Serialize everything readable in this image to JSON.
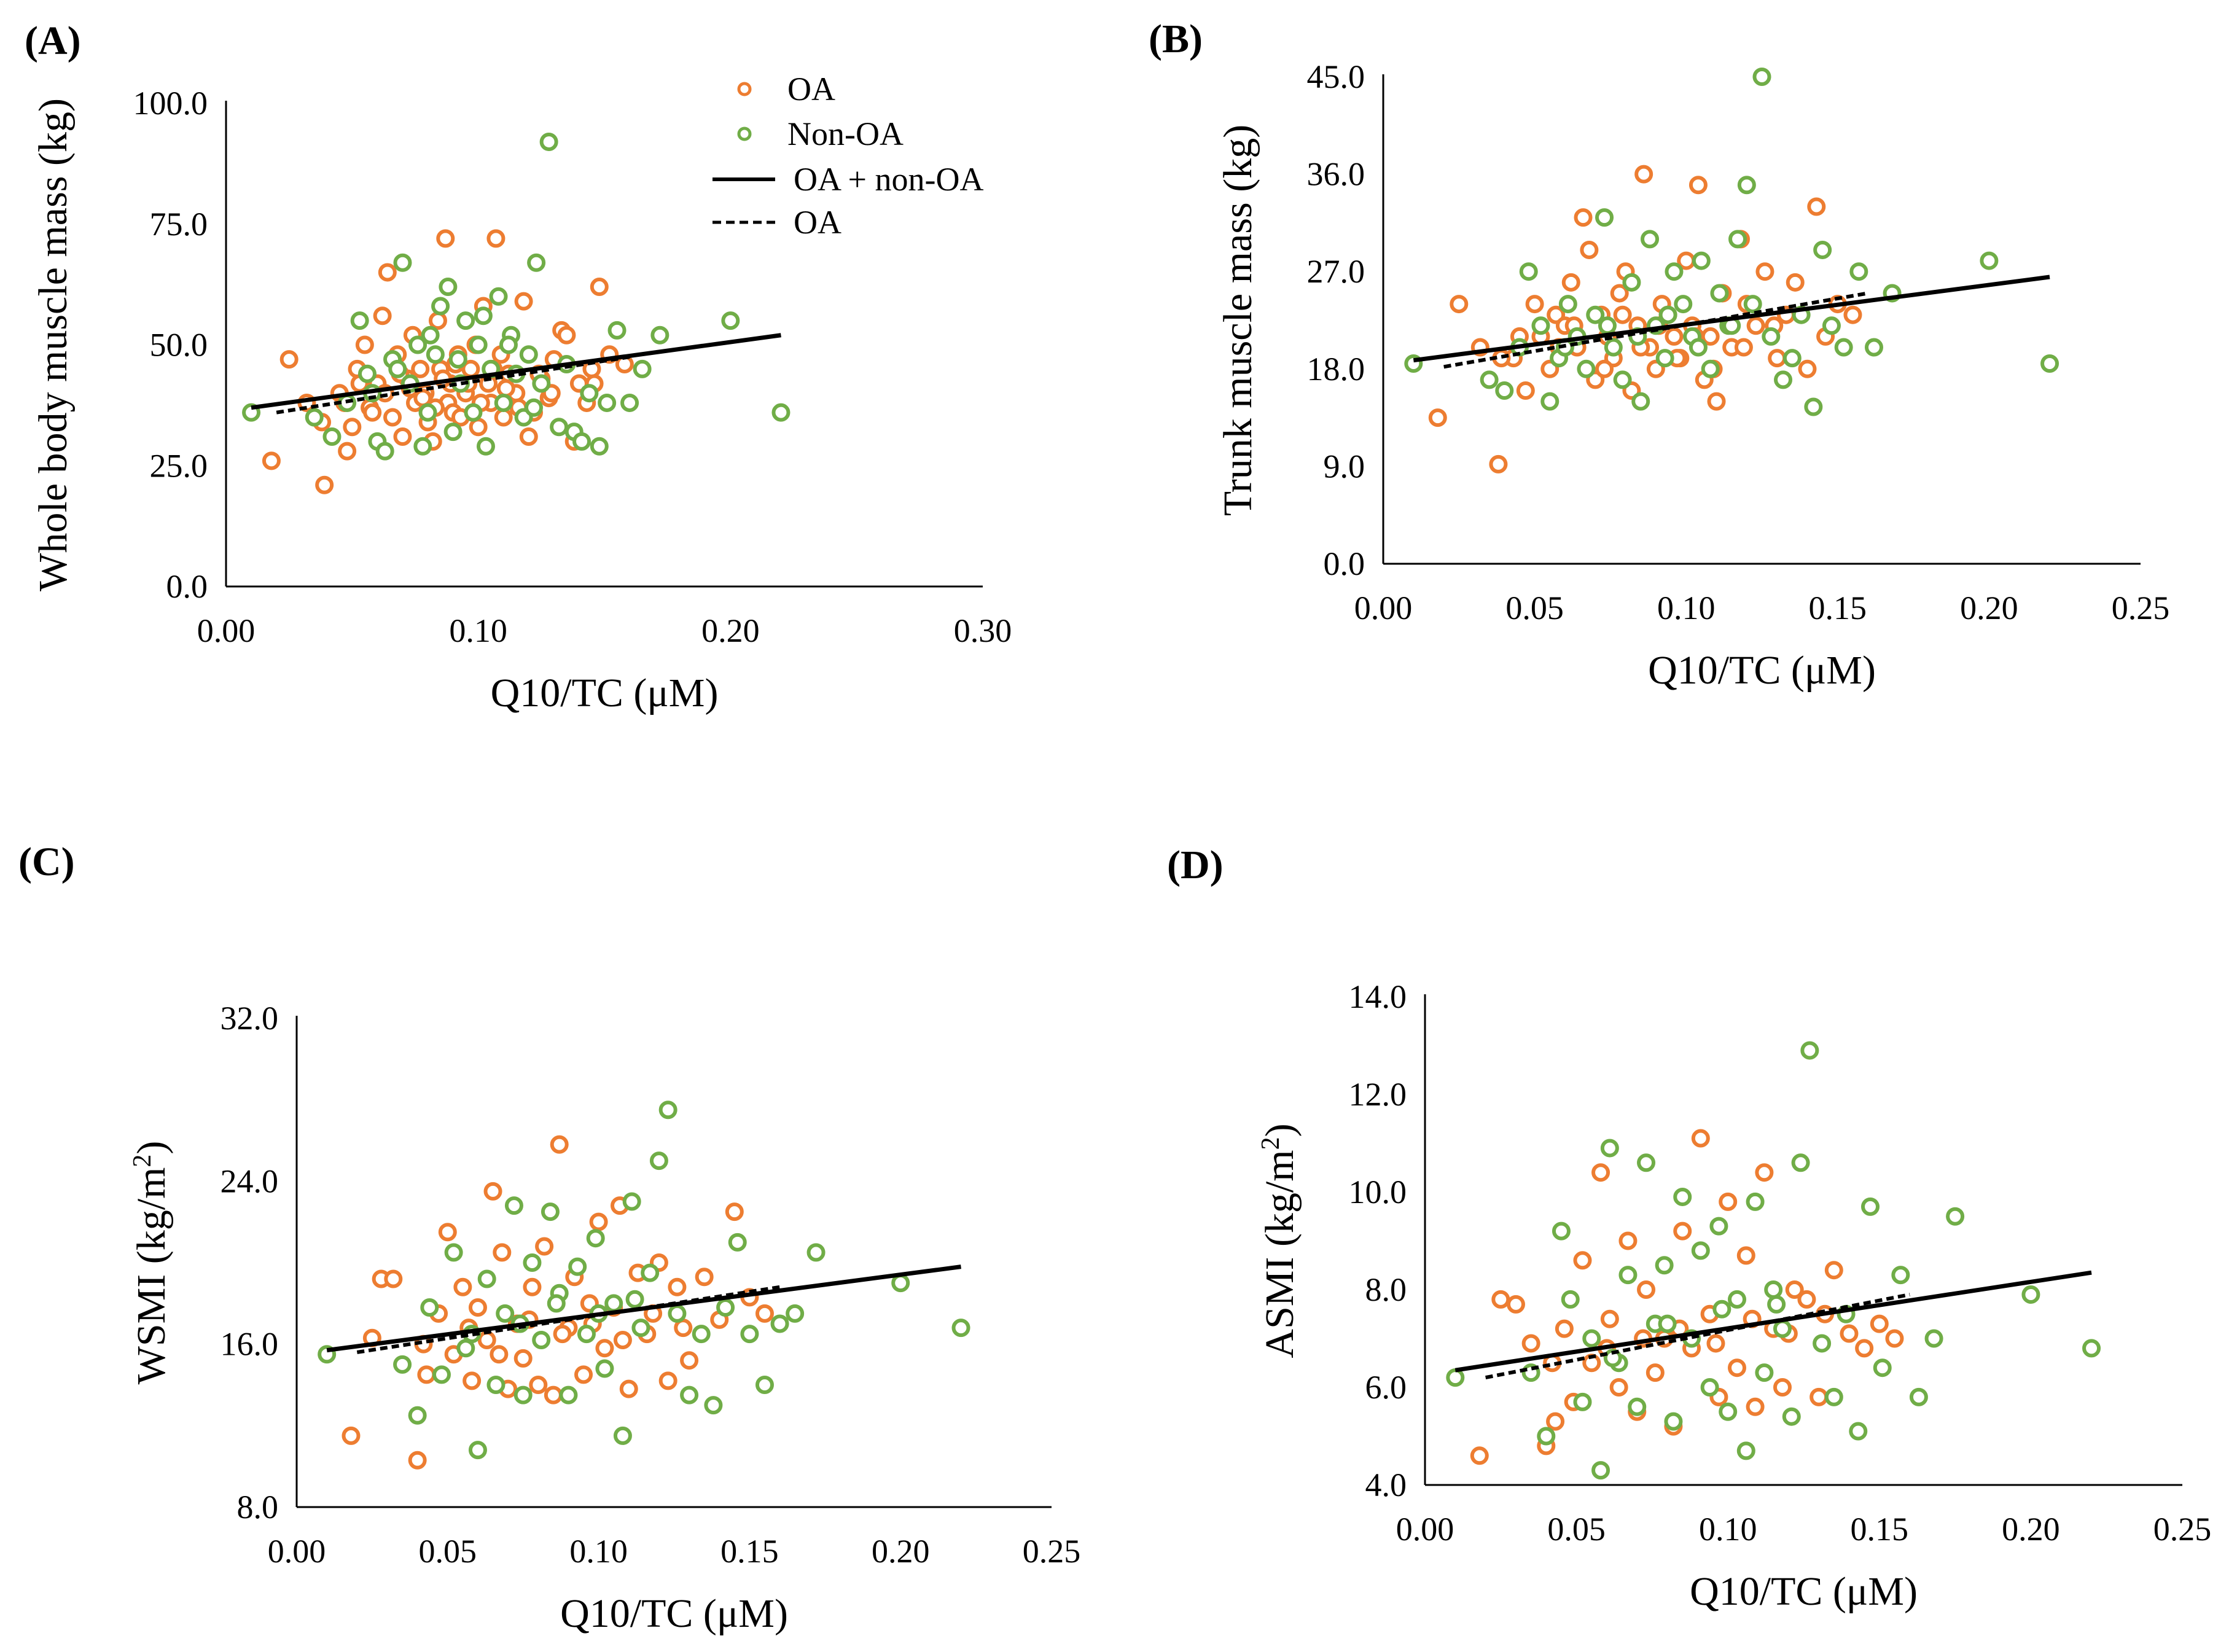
{
  "figure": {
    "colors": {
      "oa": "#ED7D31",
      "non_oa": "#70AD47",
      "fill": "#ffffff",
      "axis": "#000000",
      "line": "#000000"
    },
    "legend": [
      "OA",
      "Non-OA",
      "OA + non-OA",
      "OA"
    ]
  },
  "chart_data": [
    {
      "panel": "(A)",
      "type": "scatter",
      "xlabel": "Q10/TC (μM)",
      "ylabel": "Whole body muscle mass (kg)",
      "ylabel_sup": "",
      "xlim": [
        0,
        0.3
      ],
      "ylim": [
        0,
        100
      ],
      "xticks": [
        "0.00",
        "0.10",
        "0.20",
        "0.30"
      ],
      "yticks": [
        "0.0",
        "25.0",
        "50.0",
        "75.0",
        "100.0"
      ],
      "fit_all": {
        "x": [
          0.01,
          0.22
        ],
        "y": [
          37.0,
          52.0
        ]
      },
      "fit_oa": {
        "x": [
          0.02,
          0.16
        ],
        "y": [
          36.0,
          47.5
        ]
      },
      "series": [
        {
          "name": "OA",
          "x": [
            0.018,
            0.025,
            0.032,
            0.039,
            0.045,
            0.048,
            0.05,
            0.052,
            0.055,
            0.057,
            0.06,
            0.062,
            0.064,
            0.066,
            0.068,
            0.07,
            0.072,
            0.074,
            0.075,
            0.077,
            0.079,
            0.08,
            0.082,
            0.084,
            0.085,
            0.087,
            0.088,
            0.089,
            0.09,
            0.092,
            0.093,
            0.095,
            0.097,
            0.099,
            0.1,
            0.102,
            0.104,
            0.105,
            0.107,
            0.109,
            0.11,
            0.112,
            0.115,
            0.118,
            0.12,
            0.122,
            0.125,
            0.128,
            0.13,
            0.133,
            0.135,
            0.138,
            0.14,
            0.143,
            0.145,
            0.148,
            0.152,
            0.158,
            0.038,
            0.047,
            0.053,
            0.058,
            0.063,
            0.069,
            0.073,
            0.078,
            0.083,
            0.086,
            0.091,
            0.096,
            0.101,
            0.106,
            0.111,
            0.116,
            0.124,
            0.129,
            0.146
          ],
          "y": [
            26,
            47,
            38,
            21,
            40,
            28,
            33,
            45,
            50,
            37,
            42,
            56,
            65,
            35,
            48,
            31,
            43,
            52,
            38,
            45,
            40,
            34,
            30,
            55,
            45,
            72,
            38,
            42,
            36,
            48,
            35,
            40,
            45,
            50,
            33,
            58,
            42,
            38,
            72,
            48,
            35,
            44,
            40,
            59,
            31,
            36,
            43,
            39,
            47,
            53,
            52,
            30,
            42,
            38,
            45,
            62,
            48,
            46,
            34,
            38,
            42,
            36,
            40,
            44,
            41,
            39,
            37,
            43,
            46,
            42,
            38,
            45,
            41,
            37,
            44,
            40,
            42
          ]
        },
        {
          "name": "Non-OA",
          "x": [
            0.01,
            0.035,
            0.042,
            0.048,
            0.053,
            0.056,
            0.06,
            0.063,
            0.066,
            0.07,
            0.073,
            0.076,
            0.078,
            0.08,
            0.083,
            0.085,
            0.088,
            0.09,
            0.093,
            0.095,
            0.098,
            0.1,
            0.103,
            0.105,
            0.108,
            0.11,
            0.113,
            0.115,
            0.118,
            0.12,
            0.123,
            0.125,
            0.128,
            0.132,
            0.135,
            0.138,
            0.141,
            0.144,
            0.148,
            0.151,
            0.155,
            0.16,
            0.165,
            0.172,
            0.2,
            0.22,
            0.058,
            0.068,
            0.081,
            0.092,
            0.102,
            0.112,
            0.122
          ],
          "y": [
            36,
            35,
            31,
            38,
            55,
            44,
            30,
            28,
            47,
            67,
            42,
            50,
            29,
            36,
            48,
            58,
            62,
            32,
            42,
            55,
            36,
            50,
            29,
            45,
            60,
            38,
            52,
            44,
            35,
            48,
            67,
            42,
            92,
            33,
            46,
            32,
            30,
            40,
            29,
            38,
            53,
            38,
            45,
            52,
            55,
            36,
            40,
            45,
            52,
            47,
            56,
            50,
            37
          ]
        }
      ]
    },
    {
      "panel": "(B)",
      "type": "scatter",
      "xlabel": "Q10/TC (μM)",
      "ylabel": "Trunk muscle mass (kg)",
      "ylabel_sup": "",
      "xlim": [
        0,
        0.25
      ],
      "ylim": [
        0,
        45
      ],
      "xticks": [
        "0.00",
        "0.05",
        "0.10",
        "0.15",
        "0.20",
        "0.25"
      ],
      "yticks": [
        "0.0",
        "9.0",
        "18.0",
        "27.0",
        "36.0",
        "45.0"
      ],
      "fit_all": {
        "x": [
          0.01,
          0.22
        ],
        "y": [
          18.8,
          26.5
        ]
      },
      "fit_oa": {
        "x": [
          0.02,
          0.16
        ],
        "y": [
          18.2,
          25.0
        ]
      },
      "series": [
        {
          "name": "OA",
          "x": [
            0.018,
            0.025,
            0.032,
            0.038,
            0.043,
            0.047,
            0.05,
            0.052,
            0.055,
            0.057,
            0.06,
            0.062,
            0.064,
            0.066,
            0.068,
            0.07,
            0.072,
            0.074,
            0.076,
            0.078,
            0.08,
            0.082,
            0.084,
            0.086,
            0.088,
            0.09,
            0.092,
            0.094,
            0.096,
            0.098,
            0.1,
            0.102,
            0.104,
            0.106,
            0.108,
            0.11,
            0.112,
            0.115,
            0.118,
            0.12,
            0.123,
            0.126,
            0.13,
            0.133,
            0.136,
            0.14,
            0.143,
            0.146,
            0.15,
            0.155,
            0.039,
            0.045,
            0.058,
            0.063,
            0.073,
            0.079,
            0.085,
            0.091,
            0.097,
            0.103,
            0.109,
            0.119,
            0.129
          ],
          "y": [
            13.5,
            24,
            20,
            9.2,
            19,
            16,
            24,
            21,
            18,
            23,
            22,
            26,
            20,
            32,
            29,
            17,
            23,
            21,
            19,
            25,
            27,
            16,
            22,
            36,
            20,
            18,
            24,
            23,
            21,
            19,
            28,
            22,
            35,
            17,
            21,
            15,
            25,
            20,
            30,
            24,
            22,
            27,
            19,
            23,
            26,
            18,
            33,
            21,
            24,
            23,
            19,
            21,
            20,
            22,
            18,
            23,
            20,
            22,
            19,
            21,
            18,
            20,
            22
          ]
        },
        {
          "name": "Non-OA",
          "x": [
            0.01,
            0.035,
            0.04,
            0.045,
            0.048,
            0.052,
            0.055,
            0.058,
            0.061,
            0.064,
            0.067,
            0.07,
            0.073,
            0.076,
            0.079,
            0.082,
            0.085,
            0.088,
            0.09,
            0.093,
            0.096,
            0.099,
            0.102,
            0.105,
            0.108,
            0.111,
            0.114,
            0.117,
            0.12,
            0.122,
            0.125,
            0.128,
            0.132,
            0.135,
            0.138,
            0.142,
            0.145,
            0.148,
            0.152,
            0.157,
            0.162,
            0.168,
            0.2,
            0.22,
            0.06,
            0.074,
            0.084,
            0.094,
            0.104,
            0.115
          ],
          "y": [
            18.5,
            17,
            16,
            20,
            27,
            22,
            15,
            19,
            24,
            21,
            18,
            23,
            32,
            20,
            17,
            26,
            15,
            30,
            22,
            19,
            27,
            24,
            21,
            28,
            18,
            25,
            22,
            30,
            35,
            24,
            45,
            21,
            17,
            19,
            23,
            14.5,
            29,
            22,
            20,
            27,
            20,
            25,
            28,
            18.5,
            20,
            22,
            21,
            23,
            20,
            22
          ]
        }
      ]
    },
    {
      "panel": "(C)",
      "type": "scatter",
      "xlabel": "Q10/TC (μM)",
      "ylabel": "WSMI (kg/m",
      "ylabel_sup": "2",
      "ylabel_end": ")",
      "xlim": [
        0,
        0.25
      ],
      "ylim": [
        8,
        32
      ],
      "xticks": [
        "0.00",
        "0.05",
        "0.10",
        "0.15",
        "0.20",
        "0.25"
      ],
      "yticks": [
        "8.0",
        "16.0",
        "24.0",
        "32.0"
      ],
      "fit_all": {
        "x": [
          0.01,
          0.22
        ],
        "y": [
          15.7,
          19.8
        ]
      },
      "fit_oa": {
        "x": [
          0.02,
          0.16
        ],
        "y": [
          15.6,
          18.8
        ]
      },
      "series": [
        {
          "name": "OA",
          "x": [
            0.018,
            0.025,
            0.028,
            0.032,
            0.04,
            0.043,
            0.047,
            0.05,
            0.052,
            0.055,
            0.058,
            0.06,
            0.063,
            0.065,
            0.068,
            0.07,
            0.073,
            0.075,
            0.078,
            0.08,
            0.082,
            0.085,
            0.087,
            0.09,
            0.092,
            0.095,
            0.097,
            0.1,
            0.102,
            0.105,
            0.107,
            0.11,
            0.113,
            0.116,
            0.12,
            0.123,
            0.126,
            0.13,
            0.135,
            0.14,
            0.145,
            0.15,
            0.155,
            0.042,
            0.057,
            0.067,
            0.077,
            0.088,
            0.098,
            0.108,
            0.118,
            0.128
          ],
          "y": [
            11.5,
            16.3,
            19.2,
            19.2,
            10.3,
            14.5,
            17.5,
            21.5,
            15.5,
            18.8,
            14.2,
            17.8,
            16.2,
            23.5,
            20.5,
            13.8,
            17.0,
            15.3,
            18.8,
            14.0,
            20.8,
            13.5,
            25.8,
            16.8,
            19.3,
            14.5,
            18.0,
            22.0,
            15.8,
            17.8,
            22.8,
            13.8,
            19.5,
            16.5,
            20.0,
            14.2,
            18.8,
            15.2,
            19.3,
            17.2,
            22.5,
            18.3,
            17.5,
            16.0,
            16.8,
            15.5,
            17.2,
            16.5,
            17.0,
            16.2,
            17.5,
            16.8
          ]
        },
        {
          "name": "Non-OA",
          "x": [
            0.01,
            0.035,
            0.04,
            0.044,
            0.048,
            0.052,
            0.056,
            0.06,
            0.063,
            0.066,
            0.069,
            0.072,
            0.075,
            0.078,
            0.081,
            0.084,
            0.087,
            0.09,
            0.093,
            0.096,
            0.099,
            0.102,
            0.105,
            0.108,
            0.111,
            0.114,
            0.117,
            0.12,
            0.123,
            0.126,
            0.13,
            0.134,
            0.138,
            0.142,
            0.146,
            0.15,
            0.155,
            0.16,
            0.165,
            0.172,
            0.2,
            0.22,
            0.058,
            0.074,
            0.086,
            0.1,
            0.112
          ],
          "y": [
            15.5,
            15.0,
            12.5,
            17.8,
            14.5,
            20.5,
            15.8,
            10.8,
            19.2,
            14.0,
            17.5,
            22.8,
            13.5,
            20.0,
            16.2,
            22.5,
            18.5,
            13.5,
            19.8,
            16.5,
            21.2,
            14.8,
            18.0,
            11.5,
            23.0,
            16.8,
            19.5,
            25.0,
            27.5,
            17.5,
            13.5,
            16.5,
            13.0,
            17.8,
            21.0,
            16.5,
            14.0,
            17.0,
            17.5,
            20.5,
            19.0,
            16.8,
            16.5,
            17.0,
            18.0,
            17.5,
            18.2
          ]
        }
      ]
    },
    {
      "panel": "(D)",
      "type": "scatter",
      "xlabel": "Q10/TC (μM)",
      "ylabel": "ASMI (kg/m",
      "ylabel_sup": "2",
      "ylabel_end": ")",
      "xlim": [
        0,
        0.25
      ],
      "ylim": [
        4,
        14
      ],
      "xticks": [
        "0.00",
        "0.05",
        "0.10",
        "0.15",
        "0.20",
        "0.25"
      ],
      "yticks": [
        "4.0",
        "6.0",
        "8.0",
        "10.0",
        "12.0",
        "14.0"
      ],
      "fit_all": {
        "x": [
          0.01,
          0.22
        ],
        "y": [
          6.35,
          8.35
        ]
      },
      "fit_oa": {
        "x": [
          0.02,
          0.16
        ],
        "y": [
          6.2,
          7.9
        ]
      },
      "series": [
        {
          "name": "OA",
          "x": [
            0.018,
            0.025,
            0.03,
            0.035,
            0.04,
            0.043,
            0.046,
            0.049,
            0.052,
            0.055,
            0.058,
            0.061,
            0.064,
            0.067,
            0.07,
            0.073,
            0.076,
            0.079,
            0.082,
            0.085,
            0.088,
            0.091,
            0.094,
            0.097,
            0.1,
            0.103,
            0.106,
            0.109,
            0.112,
            0.115,
            0.118,
            0.122,
            0.126,
            0.13,
            0.135,
            0.14,
            0.145,
            0.15,
            0.155,
            0.042,
            0.06,
            0.072,
            0.084,
            0.096,
            0.108,
            0.12,
            0.132
          ],
          "y": [
            4.6,
            7.8,
            7.7,
            6.9,
            4.8,
            5.3,
            7.2,
            5.7,
            8.6,
            6.5,
            10.4,
            7.4,
            6.0,
            9.0,
            5.5,
            8.0,
            6.3,
            7.0,
            5.2,
            9.2,
            6.8,
            11.1,
            7.5,
            5.8,
            9.8,
            6.4,
            8.7,
            5.6,
            10.4,
            7.2,
            6.0,
            8.0,
            7.8,
            5.8,
            8.4,
            7.1,
            6.8,
            7.3,
            7.0,
            6.5,
            6.8,
            7.0,
            7.2,
            6.9,
            7.4,
            7.1,
            7.5
          ]
        },
        {
          "name": "Non-OA",
          "x": [
            0.01,
            0.035,
            0.04,
            0.045,
            0.048,
            0.052,
            0.055,
            0.058,
            0.061,
            0.064,
            0.067,
            0.07,
            0.073,
            0.076,
            0.079,
            0.082,
            0.085,
            0.088,
            0.091,
            0.094,
            0.097,
            0.1,
            0.103,
            0.106,
            0.109,
            0.112,
            0.115,
            0.118,
            0.121,
            0.124,
            0.127,
            0.131,
            0.135,
            0.139,
            0.143,
            0.147,
            0.151,
            0.157,
            0.163,
            0.168,
            0.175,
            0.2,
            0.22,
            0.062,
            0.08,
            0.098,
            0.116
          ],
          "y": [
            6.2,
            6.3,
            5.0,
            9.2,
            7.8,
            5.7,
            7.0,
            4.3,
            10.9,
            6.5,
            8.3,
            5.6,
            10.6,
            7.3,
            8.5,
            5.3,
            9.9,
            7.0,
            8.8,
            6.0,
            9.3,
            5.5,
            7.8,
            4.7,
            9.8,
            6.3,
            8.0,
            7.2,
            5.4,
            10.6,
            12.9,
            6.9,
            5.8,
            7.5,
            5.1,
            9.7,
            6.4,
            8.3,
            5.8,
            7.0,
            9.5,
            7.9,
            6.8,
            6.6,
            7.3,
            7.6,
            7.7
          ]
        }
      ]
    }
  ]
}
